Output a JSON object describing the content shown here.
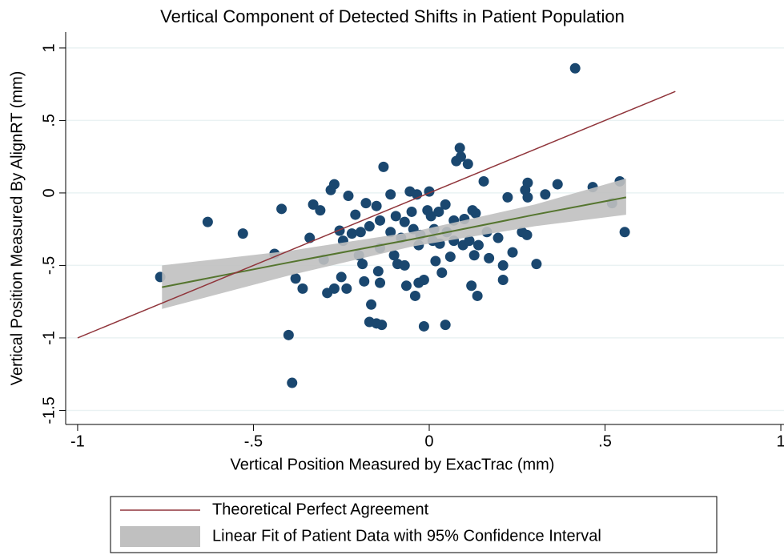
{
  "chart_data": {
    "type": "scatter",
    "title": "Vertical Component of Detected Shifts in Patient Population",
    "x_label": "Vertical Position Measured by ExacTrac (mm)",
    "y_label": "Vertical Position Measured By AlignRT (mm)",
    "xlim": [
      -1.034,
      1.009
    ],
    "ylim": [
      -1.597,
      1.11
    ],
    "xticks": [
      -1,
      {
        "value": -0.5,
        "label": "-.5"
      },
      0,
      {
        "value": 0.5,
        "label": ".5"
      },
      1
    ],
    "yticks": [
      -1.5,
      -1,
      {
        "value": -0.5,
        "label": "-.5"
      },
      0,
      {
        "value": 0.5,
        "label": ".5"
      },
      1
    ],
    "grid": true,
    "legend_position": "bottom",
    "series": [
      {
        "color": "#1a476f",
        "x": [
          0.415,
          -0.765,
          -0.63,
          -0.53,
          -0.42,
          -0.4,
          -0.39,
          -0.44,
          -0.38,
          -0.36,
          -0.34,
          -0.33,
          -0.31,
          -0.28,
          -0.27,
          -0.3,
          -0.29,
          -0.27,
          -0.255,
          -0.245,
          -0.25,
          -0.235,
          -0.23,
          -0.22,
          -0.21,
          -0.2,
          -0.195,
          -0.19,
          -0.185,
          -0.18,
          -0.17,
          -0.17,
          -0.165,
          -0.15,
          -0.135,
          -0.15,
          -0.14,
          -0.14,
          -0.13,
          -0.145,
          -0.14,
          -0.11,
          -0.11,
          -0.1,
          -0.095,
          -0.09,
          -0.08,
          -0.07,
          -0.07,
          -0.065,
          -0.055,
          -0.05,
          -0.045,
          -0.04,
          -0.035,
          -0.03,
          -0.03,
          -0.025,
          -0.015,
          -0.015,
          -0.005,
          0,
          0.005,
          0.01,
          0.014,
          0.018,
          0.027,
          0.03,
          0.036,
          0.046,
          0.046,
          0.05,
          0.06,
          0.07,
          0.07,
          0.077,
          0.087,
          0.09,
          0.096,
          0.1,
          0.11,
          0.114,
          0.12,
          0.123,
          0.128,
          0.132,
          0.137,
          0.14,
          0.155,
          0.164,
          0.17,
          0.196,
          0.21,
          0.21,
          0.223,
          0.237,
          0.264,
          0.273,
          0.278,
          0.28,
          0.28,
          0.305,
          0.33,
          0.365,
          0.465,
          0.542,
          0.556,
          0.52
        ],
        "y": [
          0.86,
          -0.58,
          -0.2,
          -0.28,
          -0.11,
          -0.98,
          -1.31,
          -0.42,
          -0.59,
          -0.66,
          -0.31,
          -0.08,
          -0.12,
          0.02,
          0.06,
          -0.46,
          -0.69,
          -0.66,
          -0.26,
          -0.33,
          -0.58,
          -0.66,
          -0.02,
          -0.28,
          -0.15,
          -0.43,
          -0.27,
          -0.49,
          -0.61,
          -0.07,
          -0.23,
          -0.89,
          -0.77,
          -0.9,
          -0.91,
          -0.09,
          -0.19,
          -0.38,
          0.18,
          -0.54,
          -0.62,
          -0.01,
          -0.27,
          -0.43,
          -0.16,
          -0.49,
          -0.31,
          -0.2,
          -0.5,
          -0.64,
          0.01,
          -0.13,
          -0.25,
          -0.71,
          -0.01,
          -0.62,
          -0.36,
          -0.29,
          -0.92,
          -0.6,
          -0.12,
          0.01,
          -0.16,
          -0.33,
          -0.25,
          -0.47,
          -0.13,
          -0.35,
          -0.55,
          -0.91,
          -0.08,
          -0.27,
          -0.44,
          -0.19,
          -0.33,
          0.22,
          0.31,
          0.25,
          -0.36,
          -0.18,
          0.2,
          -0.33,
          -0.64,
          -0.12,
          -0.43,
          -0.14,
          -0.71,
          -0.36,
          0.08,
          -0.27,
          -0.45,
          -0.31,
          -0.5,
          -0.6,
          -0.03,
          -0.41,
          -0.27,
          0.02,
          -0.29,
          0.07,
          -0.03,
          -0.49,
          -0.01,
          0.06,
          0.04,
          0.08,
          -0.27,
          -0.07
        ]
      }
    ],
    "lines": [
      {
        "name": "Theoretical Perfect Agreement",
        "color": "#90353b",
        "x": [
          -1,
          0.7
        ],
        "y": [
          -1,
          0.7
        ]
      }
    ],
    "fit": {
      "name": "Linear Fit of Patient Data with 95% Confidence Interval",
      "color": "#55752f",
      "band_color": "#c0c0c0",
      "x": [
        -0.76,
        -0.4,
        -0.05,
        0.3,
        0.56
      ],
      "y": [
        -0.65,
        -0.48,
        -0.32,
        -0.15,
        -0.03
      ],
      "lower": [
        -0.8,
        -0.57,
        -0.37,
        -0.23,
        -0.15
      ],
      "upper": [
        -0.5,
        -0.4,
        -0.27,
        -0.08,
        0.1
      ]
    }
  }
}
